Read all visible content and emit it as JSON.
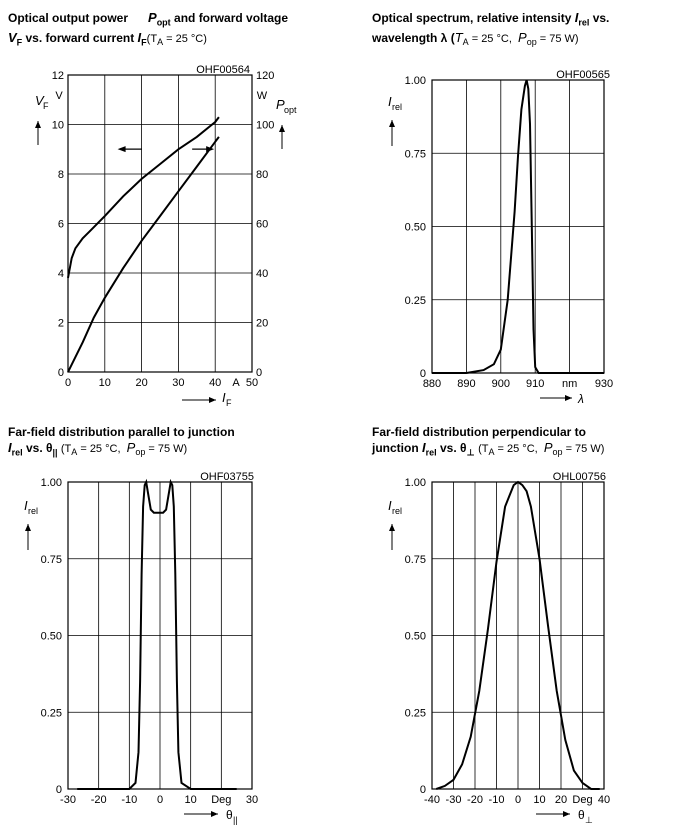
{
  "titles": {
    "p1": {
      "line1": "Optical output power",
      "sym1": "P",
      "sub1": "opt",
      "rest1": " and forward voltage",
      "sym2": "V",
      "sub2": "F",
      "rest2": " vs. forward current ",
      "sym3": "I",
      "sub3": "F",
      "cond": "(T",
      "cond_sub": "A",
      "cond2": " = 25 °C)"
    },
    "p2": {
      "line1": "Optical spectrum, relative intensity ",
      "sym1": "I",
      "sub1": "rel",
      "rest1": " vs.",
      "line2": "wavelength λ (",
      "cond": "T",
      "cond_sub": "A",
      "cond2": " = 25 °C,",
      "cond3": "P",
      "cond3_sub": "op",
      "cond4": " = 75 W)"
    },
    "p3": {
      "line1": "Far-field distribution parallel to junction",
      "sym1": "I",
      "sub1": "rel",
      "rest1": " vs. θ",
      "sub_theta": "||",
      "cond": "(T",
      "cond_sub": "A",
      "cond2": " = 25 °C,",
      "cond3": "P",
      "cond3_sub": "op",
      "cond4": " = 75 W)"
    },
    "p4": {
      "line1": "Far-field distribution perpendicular to",
      "line2": "junction ",
      "sym1": "I",
      "sub1": "rel",
      "rest1": " vs. θ",
      "sub_theta": "⊥",
      "cond": "(T",
      "cond_sub": "A",
      "cond2": " = 25 °C,",
      "cond3": "P",
      "cond3_sub": "op",
      "cond4": " = 75 W)"
    }
  },
  "chart_data": [
    {
      "type": "line",
      "id": "OHF00564",
      "title": "Optical output power Popt and forward voltage VF vs. forward current IF (TA = 25 °C)",
      "xlabel": "I_F",
      "xunit": "A",
      "xlim": [
        0,
        50
      ],
      "xticks": [
        "0",
        "10",
        "20",
        "30",
        "40",
        "50"
      ],
      "ylabel_left": "V_F",
      "yunit_left": "V",
      "ylim_left": [
        0,
        12
      ],
      "yticks_left": [
        "0",
        "2",
        "4",
        "6",
        "8",
        "10",
        "12"
      ],
      "ylabel_right": "P_opt",
      "yunit_right": "W",
      "ylim_right": [
        0,
        120
      ],
      "yticks_right": [
        "0",
        "20",
        "40",
        "60",
        "80",
        "100",
        "120"
      ],
      "series": [
        {
          "name": "V_F",
          "axis": "left",
          "x": [
            0,
            1,
            2,
            4,
            6,
            10,
            15,
            20,
            25,
            30,
            35,
            40,
            41
          ],
          "y": [
            3.8,
            4.6,
            5.0,
            5.4,
            5.7,
            6.3,
            7.1,
            7.8,
            8.4,
            9.0,
            9.5,
            10.1,
            10.3
          ]
        },
        {
          "name": "P_opt",
          "axis": "right",
          "x": [
            0,
            1,
            2,
            4,
            7,
            10,
            15,
            20,
            25,
            30,
            35,
            40,
            41
          ],
          "y": [
            0,
            3,
            6,
            12,
            22,
            30,
            42,
            53,
            63,
            73,
            83,
            93,
            95
          ]
        }
      ],
      "arrows": [
        {
          "at_x": 20,
          "at_y": 8.4,
          "dir": "left"
        },
        {
          "at_x": 37,
          "at_y": 8.4,
          "dir": "right"
        }
      ]
    },
    {
      "type": "line",
      "id": "OHF00565",
      "title": "Optical spectrum, relative intensity Irel vs. wavelength λ (TA = 25 °C, Pop = 75 W)",
      "xlabel": "λ",
      "xunit": "nm",
      "xlim": [
        880,
        930
      ],
      "xticks": [
        "880",
        "890",
        "900",
        "910",
        "nm",
        "930"
      ],
      "ylabel": "I_rel",
      "ylim": [
        0,
        1
      ],
      "yticks": [
        "0",
        "0.25",
        "0.50",
        "0.75",
        "1.00"
      ],
      "series": [
        {
          "name": "I_rel",
          "x": [
            880,
            890,
            895,
            898,
            900,
            902,
            904,
            905,
            906,
            907,
            907.5,
            908,
            908.5,
            909,
            909.5,
            910,
            911,
            920,
            930
          ],
          "y": [
            0.0,
            0.0,
            0.01,
            0.03,
            0.08,
            0.25,
            0.55,
            0.74,
            0.9,
            0.98,
            1.0,
            0.97,
            0.85,
            0.5,
            0.15,
            0.02,
            0.0,
            0.0,
            0.0
          ]
        }
      ]
    },
    {
      "type": "line",
      "id": "OHF03755",
      "title": "Far-field distribution parallel to junction Irel vs. θ|| (TA = 25 °C, Pop = 75 W)",
      "xlabel": "θ||",
      "xunit": "Deg",
      "xlim": [
        -30,
        30
      ],
      "xticks": [
        "-30",
        "-20",
        "-10",
        "0",
        "10",
        "Deg",
        "30"
      ],
      "ylabel": "I_rel",
      "ylim": [
        0,
        1
      ],
      "yticks": [
        "0",
        "0.25",
        "0.50",
        "0.75",
        "1.00"
      ],
      "series": [
        {
          "name": "I_rel",
          "x": [
            -27,
            -10,
            -8,
            -7,
            -6.5,
            -6,
            -5.5,
            -5,
            -4.5,
            -4,
            -3,
            -2,
            -1,
            0,
            1,
            2,
            3,
            3.5,
            4,
            4.5,
            5,
            5.5,
            6,
            7,
            10,
            25
          ],
          "y": [
            0.0,
            0.0,
            0.02,
            0.12,
            0.35,
            0.7,
            0.92,
            0.99,
            1.0,
            0.97,
            0.91,
            0.9,
            0.9,
            0.9,
            0.9,
            0.91,
            0.97,
            1.0,
            0.99,
            0.92,
            0.7,
            0.35,
            0.12,
            0.02,
            0.0,
            0.0
          ]
        }
      ]
    },
    {
      "type": "line",
      "id": "OHL00756",
      "title": "Far-field distribution perpendicular to junction Irel vs. θ⊥ (TA = 25 °C, Pop = 75 W)",
      "xlabel": "θ⊥",
      "xunit": "Deg",
      "xlim": [
        -40,
        40
      ],
      "xticks": [
        "-40",
        "-30",
        "-20",
        "-10",
        "0",
        "10",
        "20",
        "Deg",
        "40"
      ],
      "ylabel": "I_rel",
      "ylim": [
        0,
        1
      ],
      "yticks": [
        "0",
        "0.25",
        "0.50",
        "0.75",
        "1.00"
      ],
      "series": [
        {
          "name": "I_rel",
          "x": [
            -38,
            -34,
            -30,
            -26,
            -22,
            -18,
            -14,
            -10,
            -6,
            -2,
            0,
            2,
            4,
            6,
            10,
            14,
            18,
            22,
            26,
            30,
            34,
            38
          ],
          "y": [
            0.0,
            0.01,
            0.03,
            0.08,
            0.17,
            0.32,
            0.52,
            0.74,
            0.92,
            0.99,
            1.0,
            0.99,
            0.97,
            0.92,
            0.75,
            0.53,
            0.32,
            0.16,
            0.06,
            0.02,
            0.0,
            0.0
          ]
        }
      ]
    }
  ]
}
